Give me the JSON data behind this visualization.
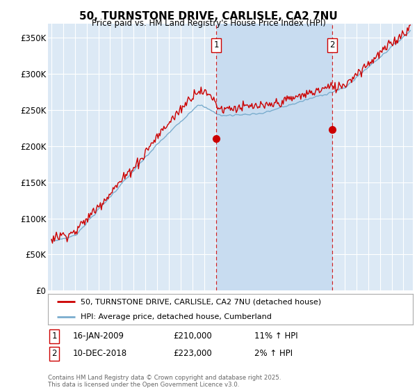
{
  "title": "50, TURNSTONE DRIVE, CARLISLE, CA2 7NU",
  "subtitle": "Price paid vs. HM Land Registry's House Price Index (HPI)",
  "background_color": "#ffffff",
  "plot_bg_color": "#dce9f5",
  "shade_color": "#c8dcf0",
  "grid_color": "#ffffff",
  "ylim": [
    0,
    370000
  ],
  "yticks": [
    0,
    50000,
    100000,
    150000,
    200000,
    250000,
    300000,
    350000
  ],
  "ytick_labels": [
    "£0",
    "£50K",
    "£100K",
    "£150K",
    "£200K",
    "£250K",
    "£300K",
    "£350K"
  ],
  "xmin": 1994.7,
  "xmax": 2025.8,
  "sale1_x": 2009.04,
  "sale1_y": 210000,
  "sale2_x": 2018.92,
  "sale2_y": 223000,
  "legend_line1": "50, TURNSTONE DRIVE, CARLISLE, CA2 7NU (detached house)",
  "legend_line2": "HPI: Average price, detached house, Cumberland",
  "footer": "Contains HM Land Registry data © Crown copyright and database right 2025.\nThis data is licensed under the Open Government Licence v3.0.",
  "table_row1": [
    "1",
    "16-JAN-2009",
    "£210,000",
    "11% ↑ HPI"
  ],
  "table_row2": [
    "2",
    "10-DEC-2018",
    "£223,000",
    "2% ↑ HPI"
  ],
  "line_red_color": "#cc0000",
  "line_blue_color": "#7aadce",
  "dashed_line_color": "#cc0000",
  "marker_color": "#cc0000"
}
